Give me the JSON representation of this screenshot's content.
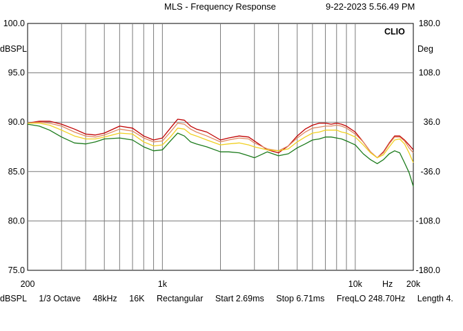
{
  "header": {
    "title": "MLS - Frequency Response",
    "timestamp": "9-22-2023 5.56.49 PM"
  },
  "footer": {
    "unit": "dBSPL",
    "resolution": "1/3 Octave",
    "sample_rate": "48kHz",
    "size": "16K",
    "window": "Rectangular",
    "start": "Start 2.69ms",
    "stop": "Stop 6.71ms",
    "freqlo": "FreqLO 248.70Hz",
    "length": "Length 4."
  },
  "chart_data": {
    "type": "line",
    "brand": "CLIO",
    "xscale": "log",
    "xlim": [
      200,
      20000
    ],
    "ylim": [
      75,
      100
    ],
    "y2lim": [
      -180,
      180
    ],
    "ylabel": "dBSPL",
    "y2label": "Deg",
    "xlabel": "Hz",
    "grid": true,
    "x_ticks": [
      {
        "value": 200,
        "label": "200"
      },
      {
        "value": 1000,
        "label": "1k"
      },
      {
        "value": 10000,
        "label": "10k"
      },
      {
        "value": 20000,
        "label": "20k"
      }
    ],
    "x_gridlines": [
      300,
      400,
      500,
      600,
      700,
      800,
      900,
      1000,
      2000,
      3000,
      4000,
      5000,
      6000,
      7000,
      8000,
      9000,
      10000
    ],
    "y_ticks": [
      {
        "value": 100,
        "label": "100.0"
      },
      {
        "value": 95,
        "label": "95.0"
      },
      {
        "value": 90,
        "label": "90.0"
      },
      {
        "value": 85,
        "label": "85.0"
      },
      {
        "value": 80,
        "label": "80.0"
      },
      {
        "value": 75,
        "label": "75.0"
      }
    ],
    "y2_ticks": [
      {
        "value": 180,
        "label": "180.0"
      },
      {
        "value": 108,
        "label": "108.0"
      },
      {
        "value": 36,
        "label": "36.0"
      },
      {
        "value": -36,
        "label": "-36.0"
      },
      {
        "value": -108,
        "label": "-108.0"
      },
      {
        "value": -180,
        "label": "-180.0"
      }
    ],
    "series": [
      {
        "color": "#c00000",
        "x": [
          200,
          230,
          260,
          300,
          350,
          400,
          450,
          500,
          600,
          700,
          800,
          900,
          1000,
          1100,
          1200,
          1300,
          1400,
          1500,
          1700,
          2000,
          2200,
          2500,
          2800,
          3000,
          3500,
          4000,
          4500,
          5000,
          5500,
          6000,
          6500,
          7000,
          7500,
          8000,
          8500,
          9000,
          10000,
          11000,
          12000,
          13000,
          14000,
          15000,
          16000,
          17000,
          18000,
          19000,
          20000
        ],
        "y": [
          89.9,
          90.1,
          90.1,
          89.8,
          89.3,
          88.8,
          88.7,
          88.9,
          89.6,
          89.4,
          88.6,
          88.2,
          88.4,
          89.4,
          90.3,
          90.2,
          89.6,
          89.3,
          89.0,
          88.2,
          88.4,
          88.6,
          88.5,
          88.1,
          87.2,
          86.9,
          87.6,
          88.6,
          89.3,
          89.7,
          89.9,
          89.9,
          89.8,
          89.9,
          89.8,
          89.6,
          89.0,
          88.0,
          87.0,
          86.4,
          87.0,
          87.9,
          88.6,
          88.6,
          88.2,
          87.7,
          87.2
        ]
      },
      {
        "color": "#e08860",
        "x": [
          200,
          230,
          260,
          300,
          350,
          400,
          450,
          500,
          600,
          700,
          800,
          900,
          1000,
          1100,
          1200,
          1300,
          1400,
          1500,
          1700,
          2000,
          2200,
          2500,
          2800,
          3000,
          3500,
          4000,
          4500,
          5000,
          5500,
          6000,
          6500,
          7000,
          7500,
          8000,
          8500,
          9000,
          10000,
          11000,
          12000,
          13000,
          14000,
          15000,
          16000,
          17000,
          18000,
          19000,
          20000
        ],
        "y": [
          89.9,
          90.0,
          89.9,
          89.6,
          89.0,
          88.6,
          88.5,
          88.7,
          89.3,
          89.1,
          88.4,
          88.0,
          88.1,
          89.0,
          89.9,
          89.8,
          89.3,
          89.0,
          88.6,
          88.0,
          88.2,
          88.4,
          88.3,
          87.9,
          87.3,
          87.1,
          87.6,
          88.4,
          89.0,
          89.4,
          89.5,
          89.6,
          89.6,
          89.7,
          89.6,
          89.4,
          88.8,
          88.0,
          87.0,
          86.4,
          86.9,
          87.8,
          88.5,
          88.5,
          88.1,
          87.4,
          86.9
        ]
      },
      {
        "color": "#f0d020",
        "x": [
          200,
          230,
          260,
          300,
          350,
          400,
          450,
          500,
          600,
          700,
          800,
          900,
          1000,
          1100,
          1200,
          1300,
          1400,
          1500,
          1700,
          2000,
          2200,
          2500,
          2800,
          3000,
          3500,
          4000,
          4500,
          5000,
          5500,
          6000,
          6500,
          7000,
          7500,
          8000,
          8500,
          9000,
          10000,
          11000,
          12000,
          13000,
          14000,
          15000,
          16000,
          17000,
          18000,
          19000,
          20000
        ],
        "y": [
          89.9,
          89.9,
          89.7,
          89.2,
          88.6,
          88.3,
          88.3,
          88.5,
          88.9,
          88.8,
          88.0,
          87.6,
          87.7,
          88.5,
          89.4,
          89.3,
          88.8,
          88.6,
          88.2,
          87.7,
          87.8,
          87.9,
          87.7,
          87.5,
          87.2,
          87.1,
          87.3,
          88.0,
          88.5,
          88.9,
          89.0,
          89.2,
          89.2,
          89.2,
          89.0,
          88.9,
          88.5,
          87.7,
          86.9,
          86.4,
          86.7,
          87.5,
          88.2,
          88.3,
          87.8,
          86.9,
          85.9
        ]
      },
      {
        "color": "#1a7a1a",
        "x": [
          200,
          230,
          260,
          300,
          350,
          400,
          450,
          500,
          600,
          700,
          800,
          900,
          1000,
          1100,
          1200,
          1300,
          1400,
          1500,
          1700,
          2000,
          2200,
          2500,
          2800,
          3000,
          3500,
          4000,
          4500,
          5000,
          5500,
          6000,
          6500,
          7000,
          7500,
          8000,
          8500,
          9000,
          10000,
          11000,
          12000,
          13000,
          14000,
          15000,
          16000,
          17000,
          18000,
          19000,
          20000
        ],
        "y": [
          89.8,
          89.6,
          89.2,
          88.5,
          87.9,
          87.8,
          88.0,
          88.3,
          88.4,
          88.2,
          87.5,
          87.1,
          87.2,
          88.1,
          88.9,
          88.6,
          88.0,
          87.8,
          87.5,
          87.0,
          87.0,
          86.9,
          86.6,
          86.4,
          87.0,
          86.6,
          86.8,
          87.4,
          87.8,
          88.2,
          88.3,
          88.5,
          88.5,
          88.4,
          88.3,
          88.1,
          87.7,
          86.8,
          86.2,
          85.8,
          86.2,
          86.8,
          87.1,
          86.9,
          85.9,
          84.9,
          83.5
        ]
      }
    ]
  }
}
